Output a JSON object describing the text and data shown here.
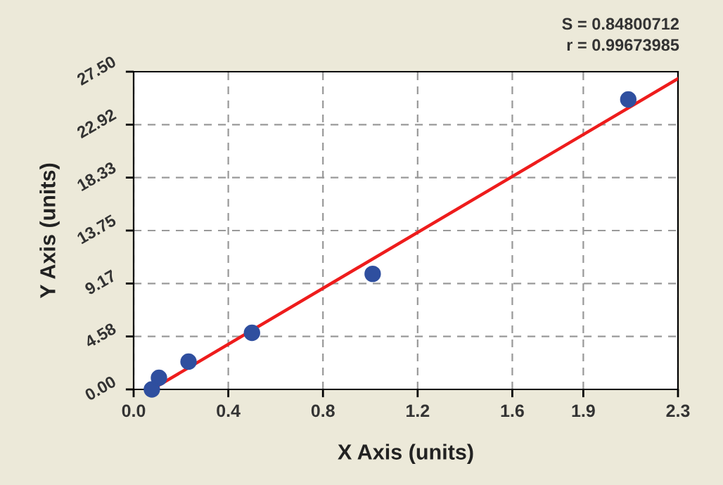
{
  "chart_data": {
    "type": "scatter",
    "xlabel": "X Axis (units)",
    "ylabel": "Y Axis (units)",
    "annotations": [
      "S = 0.84800712",
      "r = 0.99673985"
    ],
    "series": [
      {
        "color": "#2f4f9f",
        "x": [
          0.077,
          0.107,
          0.232,
          0.5,
          1.01,
          2.09
        ],
        "values": [
          0.0,
          1.0,
          2.4,
          4.9,
          10.0,
          25.1
        ],
        "marker": "circle"
      },
      {
        "type": "line",
        "color": "#ee1c1c",
        "x": [
          0.077,
          2.3
        ],
        "values": [
          0.0,
          26.9
        ],
        "marker": "none",
        "line_style": "solid"
      }
    ],
    "xlim": [
      0,
      2.3
    ],
    "ylim": [
      0,
      27.5
    ],
    "xticks": [
      {
        "value": 0,
        "label": "0.0"
      },
      0.4,
      0.8,
      1.2,
      1.6,
      1.9,
      2.3
    ],
    "yticks": [
      {
        "value": 0,
        "label": "0.00"
      },
      {
        "value": 4.5833,
        "label": "4.58"
      },
      {
        "value": 9.1667,
        "label": "9.17"
      },
      {
        "value": 13.75,
        "label": "13.75"
      },
      {
        "value": 18.3333,
        "label": "18.33"
      },
      {
        "value": 22.9167,
        "label": "22.92"
      },
      {
        "value": 27.5,
        "label": "27.50"
      }
    ],
    "grid": true
  }
}
